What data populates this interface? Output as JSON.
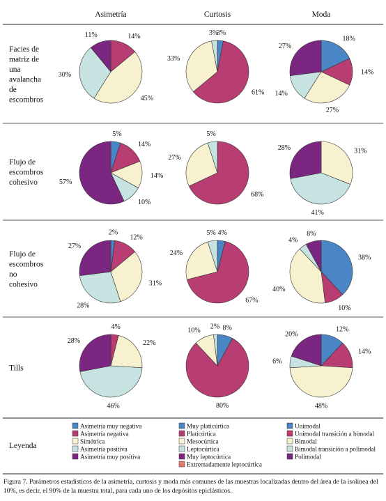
{
  "column_headers": [
    "Asimetría",
    "Curtosis",
    "Moda"
  ],
  "legend_title": "Leyenda",
  "caption": "Figura 7. Parámetros estadísticos de la asimetría, curtosis y moda más comunes de las muestras localizadas dentro del área de la isolínea del 10%, es decir, el 90% de la muestra total, para cada uno de los depósitos epiclásticos.",
  "colors": {
    "asimetria": [
      "#4a86c5",
      "#b83d72",
      "#f8f1cf",
      "#c6e3e1",
      "#7b2781"
    ],
    "curtosis": [
      "#4a86c5",
      "#b83d72",
      "#f8f1cf",
      "#c6e3e1",
      "#7b2781",
      "#e9786a"
    ],
    "moda": [
      "#4a86c5",
      "#b83d72",
      "#f8f1cf",
      "#c6e3e1",
      "#7b2781"
    ]
  },
  "legend": {
    "asimetria": [
      "Asimetría muy negativa",
      "Asimetría negativa",
      "Simétrica",
      "Asimetría positiva",
      "Asimetría muy positiva"
    ],
    "curtosis": [
      "Muy platicúrtica",
      "Platicúrtica",
      "Mesocúrtica",
      "Leptocúrtica",
      "Muy leptocúrtica",
      "Extremadamente leptocúrtica"
    ],
    "moda": [
      "Unimodal",
      "Unimodal transición a bimodal",
      "Bimodal",
      "Bimodal transición a polimodal",
      "Polimodal"
    ]
  },
  "chart_data": [
    {
      "type": "pie",
      "row_label": "Facies de matriz de una avalancha de escombros",
      "charts": {
        "asimetria": {
          "slices": [
            {
              "category": 1,
              "value": 14
            },
            {
              "category": 2,
              "value": 45
            },
            {
              "category": 3,
              "value": 30
            },
            {
              "category": 4,
              "value": 11
            }
          ],
          "labels": [
            "14%",
            "45%",
            "30%",
            "11%"
          ]
        },
        "curtosis": {
          "slices": [
            {
              "category": 0,
              "value": 3
            },
            {
              "category": 1,
              "value": 61
            },
            {
              "category": 2,
              "value": 33
            },
            {
              "category": 3,
              "value": 3
            }
          ],
          "labels": [
            "3%",
            "61%",
            "33%",
            "3%"
          ]
        },
        "moda": {
          "slices": [
            {
              "category": 0,
              "value": 18
            },
            {
              "category": 1,
              "value": 14
            },
            {
              "category": 2,
              "value": 27
            },
            {
              "category": 3,
              "value": 14
            },
            {
              "category": 4,
              "value": 27
            }
          ],
          "labels": [
            "18%",
            "14%",
            "27%",
            "14%",
            "27%"
          ]
        }
      }
    },
    {
      "type": "pie",
      "row_label": "Flujo de escombros cohesivo",
      "charts": {
        "asimetria": {
          "slices": [
            {
              "category": 0,
              "value": 5
            },
            {
              "category": 1,
              "value": 14
            },
            {
              "category": 2,
              "value": 14
            },
            {
              "category": 3,
              "value": 10
            },
            {
              "category": 4,
              "value": 57
            }
          ],
          "labels": [
            "5%",
            "14%",
            "14%",
            "10%",
            "57%"
          ]
        },
        "curtosis": {
          "slices": [
            {
              "category": 1,
              "value": 68
            },
            {
              "category": 2,
              "value": 27
            },
            {
              "category": 3,
              "value": 5
            }
          ],
          "labels": [
            "68%",
            "27%",
            "5%"
          ]
        },
        "moda": {
          "slices": [
            {
              "category": 2,
              "value": 31
            },
            {
              "category": 3,
              "value": 41
            },
            {
              "category": 4,
              "value": 28
            }
          ],
          "labels": [
            "31%",
            "41%",
            "28%"
          ]
        }
      }
    },
    {
      "type": "pie",
      "row_label": "Flujo de escombros no cohesivo",
      "charts": {
        "asimetria": {
          "slices": [
            {
              "category": 0,
              "value": 2
            },
            {
              "category": 1,
              "value": 12
            },
            {
              "category": 2,
              "value": 31
            },
            {
              "category": 3,
              "value": 28
            },
            {
              "category": 4,
              "value": 27
            }
          ],
          "labels": [
            "2%",
            "12%",
            "31%",
            "28%",
            "27%"
          ]
        },
        "curtosis": {
          "slices": [
            {
              "category": 0,
              "value": 4
            },
            {
              "category": 1,
              "value": 67
            },
            {
              "category": 2,
              "value": 24
            },
            {
              "category": 3,
              "value": 5
            }
          ],
          "labels": [
            "4%",
            "67%",
            "24%",
            "5%"
          ]
        },
        "moda": {
          "slices": [
            {
              "category": 0,
              "value": 38
            },
            {
              "category": 1,
              "value": 10
            },
            {
              "category": 2,
              "value": 40
            },
            {
              "category": 3,
              "value": 4
            },
            {
              "category": 4,
              "value": 8
            }
          ],
          "labels": [
            "38%",
            "10%",
            "40%",
            "4%",
            "8%"
          ]
        }
      }
    },
    {
      "type": "pie",
      "row_label": "Tills",
      "charts": {
        "asimetria": {
          "slices": [
            {
              "category": 1,
              "value": 4
            },
            {
              "category": 2,
              "value": 22
            },
            {
              "category": 3,
              "value": 46
            },
            {
              "category": 4,
              "value": 28
            }
          ],
          "labels": [
            "4%",
            "22%",
            "46%",
            "28%"
          ]
        },
        "curtosis": {
          "slices": [
            {
              "category": 0,
              "value": 8
            },
            {
              "category": 1,
              "value": 80
            },
            {
              "category": 2,
              "value": 10
            },
            {
              "category": 3,
              "value": 2
            }
          ],
          "labels": [
            "8%",
            "80%",
            "10%",
            "2%"
          ]
        },
        "moda": {
          "slices": [
            {
              "category": 0,
              "value": 12
            },
            {
              "category": 1,
              "value": 14
            },
            {
              "category": 2,
              "value": 48
            },
            {
              "category": 3,
              "value": 6
            },
            {
              "category": 4,
              "value": 20
            }
          ],
          "labels": [
            "12%",
            "14%",
            "48%",
            "6%",
            "20%"
          ]
        }
      }
    }
  ]
}
